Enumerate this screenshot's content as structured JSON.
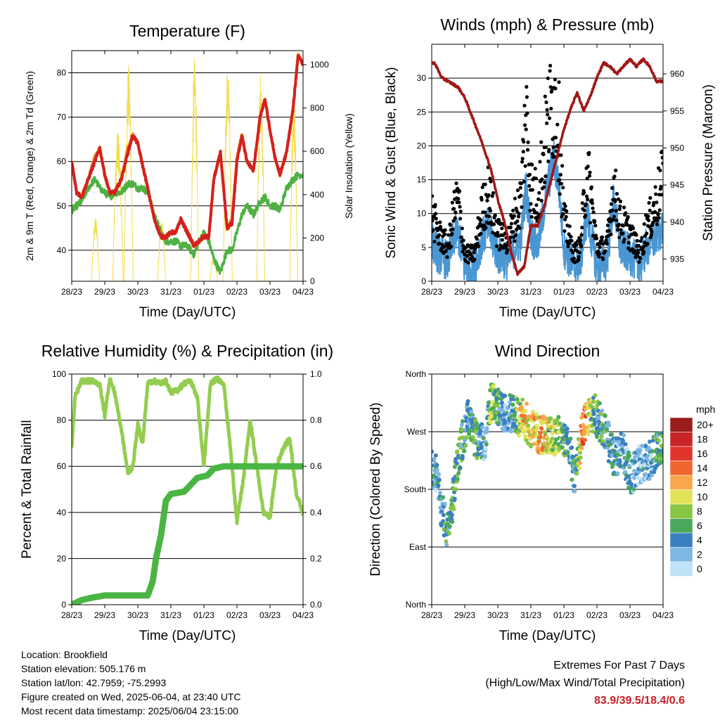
{
  "x_ticks": [
    "28/23",
    "29/23",
    "30/23",
    "31/23",
    "01/23",
    "02/23",
    "03/23",
    "04/23"
  ],
  "colors": {
    "red": "#d42020",
    "orange": "#f08a24",
    "green": "#4fb043",
    "yellow": "#f5dc4a",
    "black": "#000000",
    "blue": "#4a96d2",
    "maroon": "#a01818",
    "light_green": "#93cd50",
    "dark_green": "#4bb543"
  },
  "chart_data": [
    {
      "id": "temperature",
      "type": "line",
      "title": "Temperature (F)",
      "xlabel": "Time (Day/UTC)",
      "ylabel": "2m & 9m T (Red, Orange) & 2m Td (Green)",
      "ylabel_right": "Solar Insolation (Yellow)",
      "ylim": [
        33,
        85
      ],
      "yticks": [
        40,
        50,
        60,
        70,
        80
      ],
      "ylim_right": [
        0,
        1065
      ],
      "yticks_right": [
        0,
        200,
        400,
        600,
        800,
        1000
      ],
      "x": [
        0,
        0.15,
        0.3,
        0.5,
        0.7,
        0.85,
        1.0,
        1.15,
        1.3,
        1.5,
        1.7,
        1.85,
        2.0,
        2.15,
        2.3,
        2.5,
        2.7,
        2.85,
        3.0,
        3.15,
        3.3,
        3.5,
        3.7,
        3.85,
        4.0,
        4.15,
        4.3,
        4.5,
        4.7,
        4.85,
        5.0,
        5.15,
        5.3,
        5.5,
        5.7,
        5.85,
        6.0,
        6.15,
        6.3,
        6.5,
        6.7,
        6.85,
        7.0
      ],
      "series": [
        {
          "name": "2m T",
          "color": "red",
          "values": [
            60,
            53,
            52,
            56,
            60,
            63,
            57,
            53,
            53,
            56,
            62,
            66,
            64,
            59,
            54,
            47,
            43,
            43,
            44,
            44,
            47,
            44,
            41,
            42,
            43,
            43,
            56,
            62,
            45,
            46,
            60,
            66,
            60,
            58,
            70,
            74,
            67,
            61,
            57,
            62,
            72,
            84,
            82
          ]
        },
        {
          "name": "9m T",
          "color": "orange",
          "values": [
            60,
            53,
            52,
            56,
            61,
            63,
            57,
            53,
            53,
            56,
            63,
            66,
            64,
            59,
            54,
            47,
            43,
            43,
            44,
            44,
            47,
            44,
            41,
            42,
            43,
            43,
            56,
            62,
            45,
            47,
            61,
            66,
            60,
            58,
            70,
            74,
            67,
            61,
            57,
            62,
            72,
            84,
            82
          ]
        },
        {
          "name": "2m Td",
          "color": "green",
          "values": [
            49,
            50,
            51,
            54,
            56,
            54,
            53,
            52,
            53,
            53,
            55,
            55,
            54,
            54,
            53,
            48,
            44,
            42,
            42,
            42,
            41,
            41,
            39,
            42,
            44,
            42,
            38,
            35,
            40,
            40,
            44,
            48,
            50,
            48,
            51,
            52,
            50,
            50,
            49,
            54,
            56,
            57,
            57
          ]
        }
      ],
      "solar": {
        "name": "Solar Insolation",
        "color": "yellow",
        "peaks": [
          {
            "t": 0.72,
            "w": 0.12,
            "v": 300
          },
          {
            "t": 1.4,
            "w": 0.16,
            "v": 700
          },
          {
            "t": 1.72,
            "w": 0.14,
            "v": 1000
          },
          {
            "t": 2.72,
            "w": 0.12,
            "v": 280
          },
          {
            "t": 3.72,
            "w": 0.12,
            "v": 1040
          },
          {
            "t": 4.3,
            "w": 0.12,
            "v": 120
          },
          {
            "t": 4.72,
            "w": 0.14,
            "v": 1000
          },
          {
            "t": 5.72,
            "w": 0.12,
            "v": 980
          },
          {
            "t": 6.72,
            "w": 0.12,
            "v": 860
          }
        ]
      }
    },
    {
      "id": "winds",
      "type": "scatter",
      "title": "Winds (mph) & Pressure (mb)",
      "xlabel": "Time (Day/UTC)",
      "ylabel": "Sonic Wind & Gust (Blue, Black)",
      "ylabel_right": "Station Pressure (Maroon)",
      "ylim": [
        0,
        35
      ],
      "yticks": [
        0,
        5,
        10,
        15,
        20,
        25,
        30
      ],
      "ylim_right": [
        932,
        964
      ],
      "yticks_right": [
        935,
        940,
        945,
        950,
        955,
        960
      ],
      "wind_x": [
        0,
        0.2,
        0.5,
        0.7,
        0.8,
        1.0,
        1.3,
        1.5,
        1.7,
        2.0,
        2.3,
        2.5,
        2.7,
        2.85,
        3.0,
        3.2,
        3.5,
        3.7,
        3.85,
        4.0,
        4.3,
        4.5,
        4.7,
        5.0,
        5.3,
        5.5,
        5.7,
        6.0,
        6.3,
        6.5,
        6.7,
        7.0
      ],
      "wind_values": [
        6,
        4,
        3,
        7,
        7,
        2,
        2,
        6,
        8,
        4,
        3,
        5,
        6,
        14,
        7,
        5,
        14,
        18,
        14,
        5,
        2,
        3,
        10,
        2,
        3,
        12,
        5,
        4,
        2,
        5,
        6,
        8
      ],
      "gust_values": [
        10,
        7,
        5,
        11,
        12,
        4,
        4,
        10,
        13,
        7,
        6,
        9,
        12,
        25,
        14,
        12,
        23,
        27,
        22,
        9,
        4,
        5,
        17,
        5,
        5,
        14,
        9,
        7,
        4,
        8,
        10,
        15
      ],
      "pressure_x": [
        0,
        0.1,
        0.3,
        0.5,
        0.8,
        1.0,
        1.2,
        1.5,
        1.8,
        2.0,
        2.2,
        2.4,
        2.6,
        2.8,
        3.0,
        3.2,
        3.4,
        3.6,
        3.8,
        4.0,
        4.2,
        4.4,
        4.6,
        4.8,
        5.0,
        5.2,
        5.4,
        5.6,
        5.8,
        6.0,
        6.2,
        6.4,
        6.6,
        6.8,
        7.0
      ],
      "pressure_values": [
        961.5,
        961.4,
        959.5,
        959,
        958.2,
        956.8,
        954.5,
        951,
        947,
        943,
        940,
        936,
        933,
        934,
        939.5,
        939.5,
        942,
        945.5,
        949,
        952.5,
        955.2,
        957.5,
        955,
        957,
        959.5,
        961.5,
        961,
        960,
        961,
        962,
        961,
        962,
        961,
        959,
        959
      ]
    },
    {
      "id": "humidity",
      "type": "line",
      "title": "Relative Humidity (%) & Precipitation (in)",
      "xlabel": "Time (Day/UTC)",
      "ylabel": "Percent & Total Rainfall",
      "ylim": [
        0,
        100
      ],
      "yticks": [
        0,
        20,
        40,
        60,
        80,
        100
      ],
      "ylim_right": [
        0,
        1.0
      ],
      "yticks_right": [
        "0.0",
        "0.2",
        "0.4",
        "0.6",
        "0.8",
        "1.0"
      ],
      "rh_x": [
        0,
        0.1,
        0.3,
        0.5,
        0.7,
        0.85,
        1.0,
        1.15,
        1.3,
        1.5,
        1.7,
        1.85,
        2.0,
        2.15,
        2.3,
        2.5,
        2.7,
        2.85,
        3.0,
        3.2,
        3.4,
        3.6,
        3.8,
        4.0,
        4.2,
        4.4,
        4.6,
        4.8,
        5.0,
        5.2,
        5.4,
        5.6,
        5.8,
        6.0,
        6.2,
        6.4,
        6.6,
        6.8,
        7.0
      ],
      "rh_values": [
        68,
        90,
        97,
        97,
        97,
        95,
        82,
        98,
        92,
        76,
        57,
        60,
        78,
        70,
        96,
        97,
        96,
        97,
        92,
        93,
        96,
        97,
        90,
        60,
        96,
        98,
        96,
        68,
        36,
        55,
        80,
        60,
        40,
        38,
        60,
        68,
        72,
        48,
        40
      ],
      "precip_x": [
        0,
        0.3,
        0.6,
        1.0,
        1.5,
        2.0,
        2.3,
        2.45,
        2.55,
        2.7,
        2.85,
        3.0,
        3.4,
        3.6,
        3.8,
        4.1,
        4.3,
        4.6,
        5.0,
        7.0
      ],
      "precip_values": [
        0,
        0.02,
        0.03,
        0.04,
        0.04,
        0.04,
        0.04,
        0.1,
        0.2,
        0.3,
        0.45,
        0.48,
        0.49,
        0.52,
        0.55,
        0.56,
        0.59,
        0.6,
        0.6,
        0.6
      ]
    },
    {
      "id": "direction",
      "type": "scatter",
      "title": "Wind Direction",
      "xlabel": "Time (Day/UTC)",
      "ylabel": "Direction (Colored By Speed)",
      "ylim": [
        0,
        360
      ],
      "ytick_values": [
        0,
        90,
        180,
        270,
        360
      ],
      "ytick_labels": [
        "North",
        "East",
        "South",
        "West",
        "North"
      ],
      "legend_title": "mph",
      "legend_labels": [
        "20+",
        "18",
        "16",
        "14",
        "12",
        "10",
        "8",
        "6",
        "4",
        "2",
        "0"
      ],
      "legend_colors": [
        "#9b1c1c",
        "#c82325",
        "#e0352c",
        "#f0652f",
        "#f9a74a",
        "#e3e35a",
        "#88c544",
        "#4aa85c",
        "#3a7fc0",
        "#7db7e2",
        "#bfe2f6"
      ],
      "cluster_x": [
        0.1,
        0.3,
        0.5,
        0.8,
        1.1,
        1.3,
        1.6,
        1.8,
        2.1,
        2.4,
        2.8,
        3.0,
        3.3,
        3.6,
        3.8,
        4.1,
        4.3,
        4.6,
        4.9,
        5.2,
        5.5,
        5.8,
        6.0,
        6.3,
        6.6,
        6.9
      ],
      "cluster_dir": [
        210,
        150,
        110,
        230,
        290,
        260,
        250,
        320,
        300,
        300,
        290,
        275,
        265,
        262,
        265,
        260,
        200,
        280,
        300,
        275,
        230,
        240,
        200,
        220,
        225,
        245
      ],
      "cluster_speed": [
        3,
        4,
        5,
        6,
        5,
        6,
        2,
        8,
        4,
        3,
        12,
        10,
        12,
        9,
        8,
        4,
        3,
        14,
        6,
        5,
        4,
        3,
        4,
        2,
        3,
        6
      ]
    }
  ],
  "footer": {
    "location": "Location: Brookfield",
    "elevation": "Station elevation: 505.176 m",
    "latlon": "Station lat/lon: 42.7959; -75.2993",
    "created": "Figure created on Wed, 2025-06-04, at 23:40 UTC",
    "timestamp": "Most recent data timestamp: 2025/06/04 23:15:00",
    "extremes_title": "Extremes For Past 7 Days",
    "extremes_sub": "(High/Low/Max Wind/Total Precipitation)",
    "extremes_values": "83.9/39.5/18.4/0.6"
  }
}
